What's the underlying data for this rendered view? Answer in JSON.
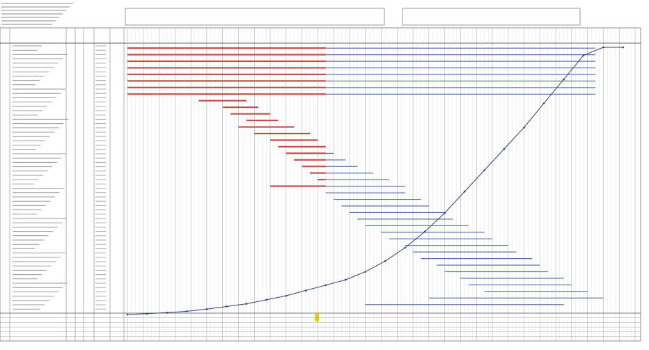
{
  "chart_data": [
    {
      "type": "line",
      "color": "#2d3f7a",
      "x": [
        0,
        5,
        10,
        15,
        20,
        25,
        30,
        35,
        40,
        45,
        50,
        55,
        60,
        65,
        70,
        75,
        80,
        85,
        90,
        95,
        100,
        105,
        110,
        115,
        120,
        125
      ],
      "values": [
        0,
        0.3,
        0.7,
        1.2,
        2,
        3,
        4,
        5.5,
        7,
        9,
        11,
        13,
        16,
        20,
        25,
        31,
        38,
        46,
        54,
        62,
        70,
        79,
        88,
        97,
        100,
        100
      ],
      "xlim": [
        0,
        128
      ],
      "ylim": [
        0,
        100
      ]
    },
    {
      "type": "gantt",
      "plan_color": "#5b6ea8",
      "actual_color": "#c0504d",
      "xlim": [
        0,
        128
      ],
      "tasks": [
        {
          "start": 0,
          "end": 118,
          "done": 50
        },
        {
          "start": 0,
          "end": 118,
          "done": 50
        },
        {
          "start": 0,
          "end": 118,
          "done": 50
        },
        {
          "start": 0,
          "end": 118,
          "done": 50
        },
        {
          "start": 0,
          "end": 118,
          "done": 50
        },
        {
          "start": 0,
          "end": 118,
          "done": 50
        },
        {
          "start": 0,
          "end": 118,
          "done": 50
        },
        {
          "start": 0,
          "end": 118,
          "done": 50
        },
        {
          "start": 18,
          "end": 30,
          "done": 30
        },
        {
          "start": 24,
          "end": 33,
          "done": 33
        },
        {
          "start": 26,
          "end": 36,
          "done": 36
        },
        {
          "start": 30,
          "end": 38,
          "done": 38
        },
        {
          "start": 28,
          "end": 42,
          "done": 42
        },
        {
          "start": 32,
          "end": 46,
          "done": 46
        },
        {
          "start": 36,
          "end": 48,
          "done": 48
        },
        {
          "start": 38,
          "end": 50,
          "done": 50
        },
        {
          "start": 40,
          "end": 52,
          "done": 50
        },
        {
          "start": 42,
          "end": 55,
          "done": 50
        },
        {
          "start": 44,
          "end": 58,
          "done": 50
        },
        {
          "start": 46,
          "end": 62,
          "done": 50
        },
        {
          "start": 48,
          "end": 66,
          "done": 50
        },
        {
          "start": 36,
          "end": 70,
          "done": 50
        },
        {
          "start": 50,
          "end": 70,
          "done": 50
        },
        {
          "start": 52,
          "end": 74,
          "done": 50
        },
        {
          "start": 54,
          "end": 76,
          "done": 50
        },
        {
          "start": 56,
          "end": 80,
          "done": 50
        },
        {
          "start": 58,
          "end": 82,
          "done": 50
        },
        {
          "start": 60,
          "end": 86,
          "done": 50
        },
        {
          "start": 64,
          "end": 90,
          "done": 50
        },
        {
          "start": 66,
          "end": 92,
          "done": 50
        },
        {
          "start": 70,
          "end": 96,
          "done": 50
        },
        {
          "start": 72,
          "end": 98,
          "done": 50
        },
        {
          "start": 74,
          "end": 102,
          "done": 50
        },
        {
          "start": 78,
          "end": 104,
          "done": 50
        },
        {
          "start": 80,
          "end": 106,
          "done": 50
        },
        {
          "start": 84,
          "end": 110,
          "done": 50
        },
        {
          "start": 86,
          "end": 112,
          "done": 50
        },
        {
          "start": 90,
          "end": 116,
          "done": 50
        },
        {
          "start": 76,
          "end": 120,
          "done": 50
        },
        {
          "start": 60,
          "end": 110,
          "done": 50
        }
      ]
    }
  ]
}
